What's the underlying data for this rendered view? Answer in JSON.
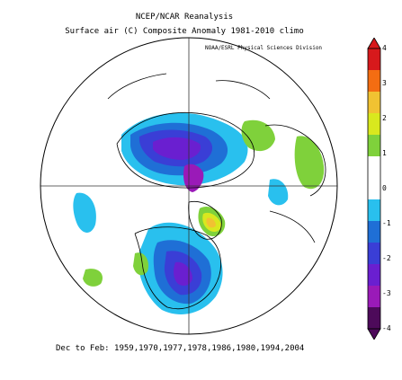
{
  "header": {
    "line1": "NCEP/NCAR Reanalysis",
    "line2": "Surface air (C) Composite Anomaly 1981-2010 climo"
  },
  "credit": "NOAA/ESRL Physical Sciences Division",
  "caption": "Dec to Feb: 1959,1970,1977,1978,1986,1980,1994,2004",
  "colorbar": {
    "labels": [
      "4",
      "3",
      "2",
      "1",
      "0",
      "-1",
      "-2",
      "-3",
      "-4"
    ],
    "colors": [
      "#d7191c",
      "#f46d12",
      "#f1c232",
      "#d9e81e",
      "#7fd13b",
      "#ffffff",
      "#ffffff",
      "#29c0ee",
      "#1f6fd6",
      "#3a3ed6",
      "#6a1fd0",
      "#9a1ab8",
      "#4d0a5a"
    ]
  }
}
